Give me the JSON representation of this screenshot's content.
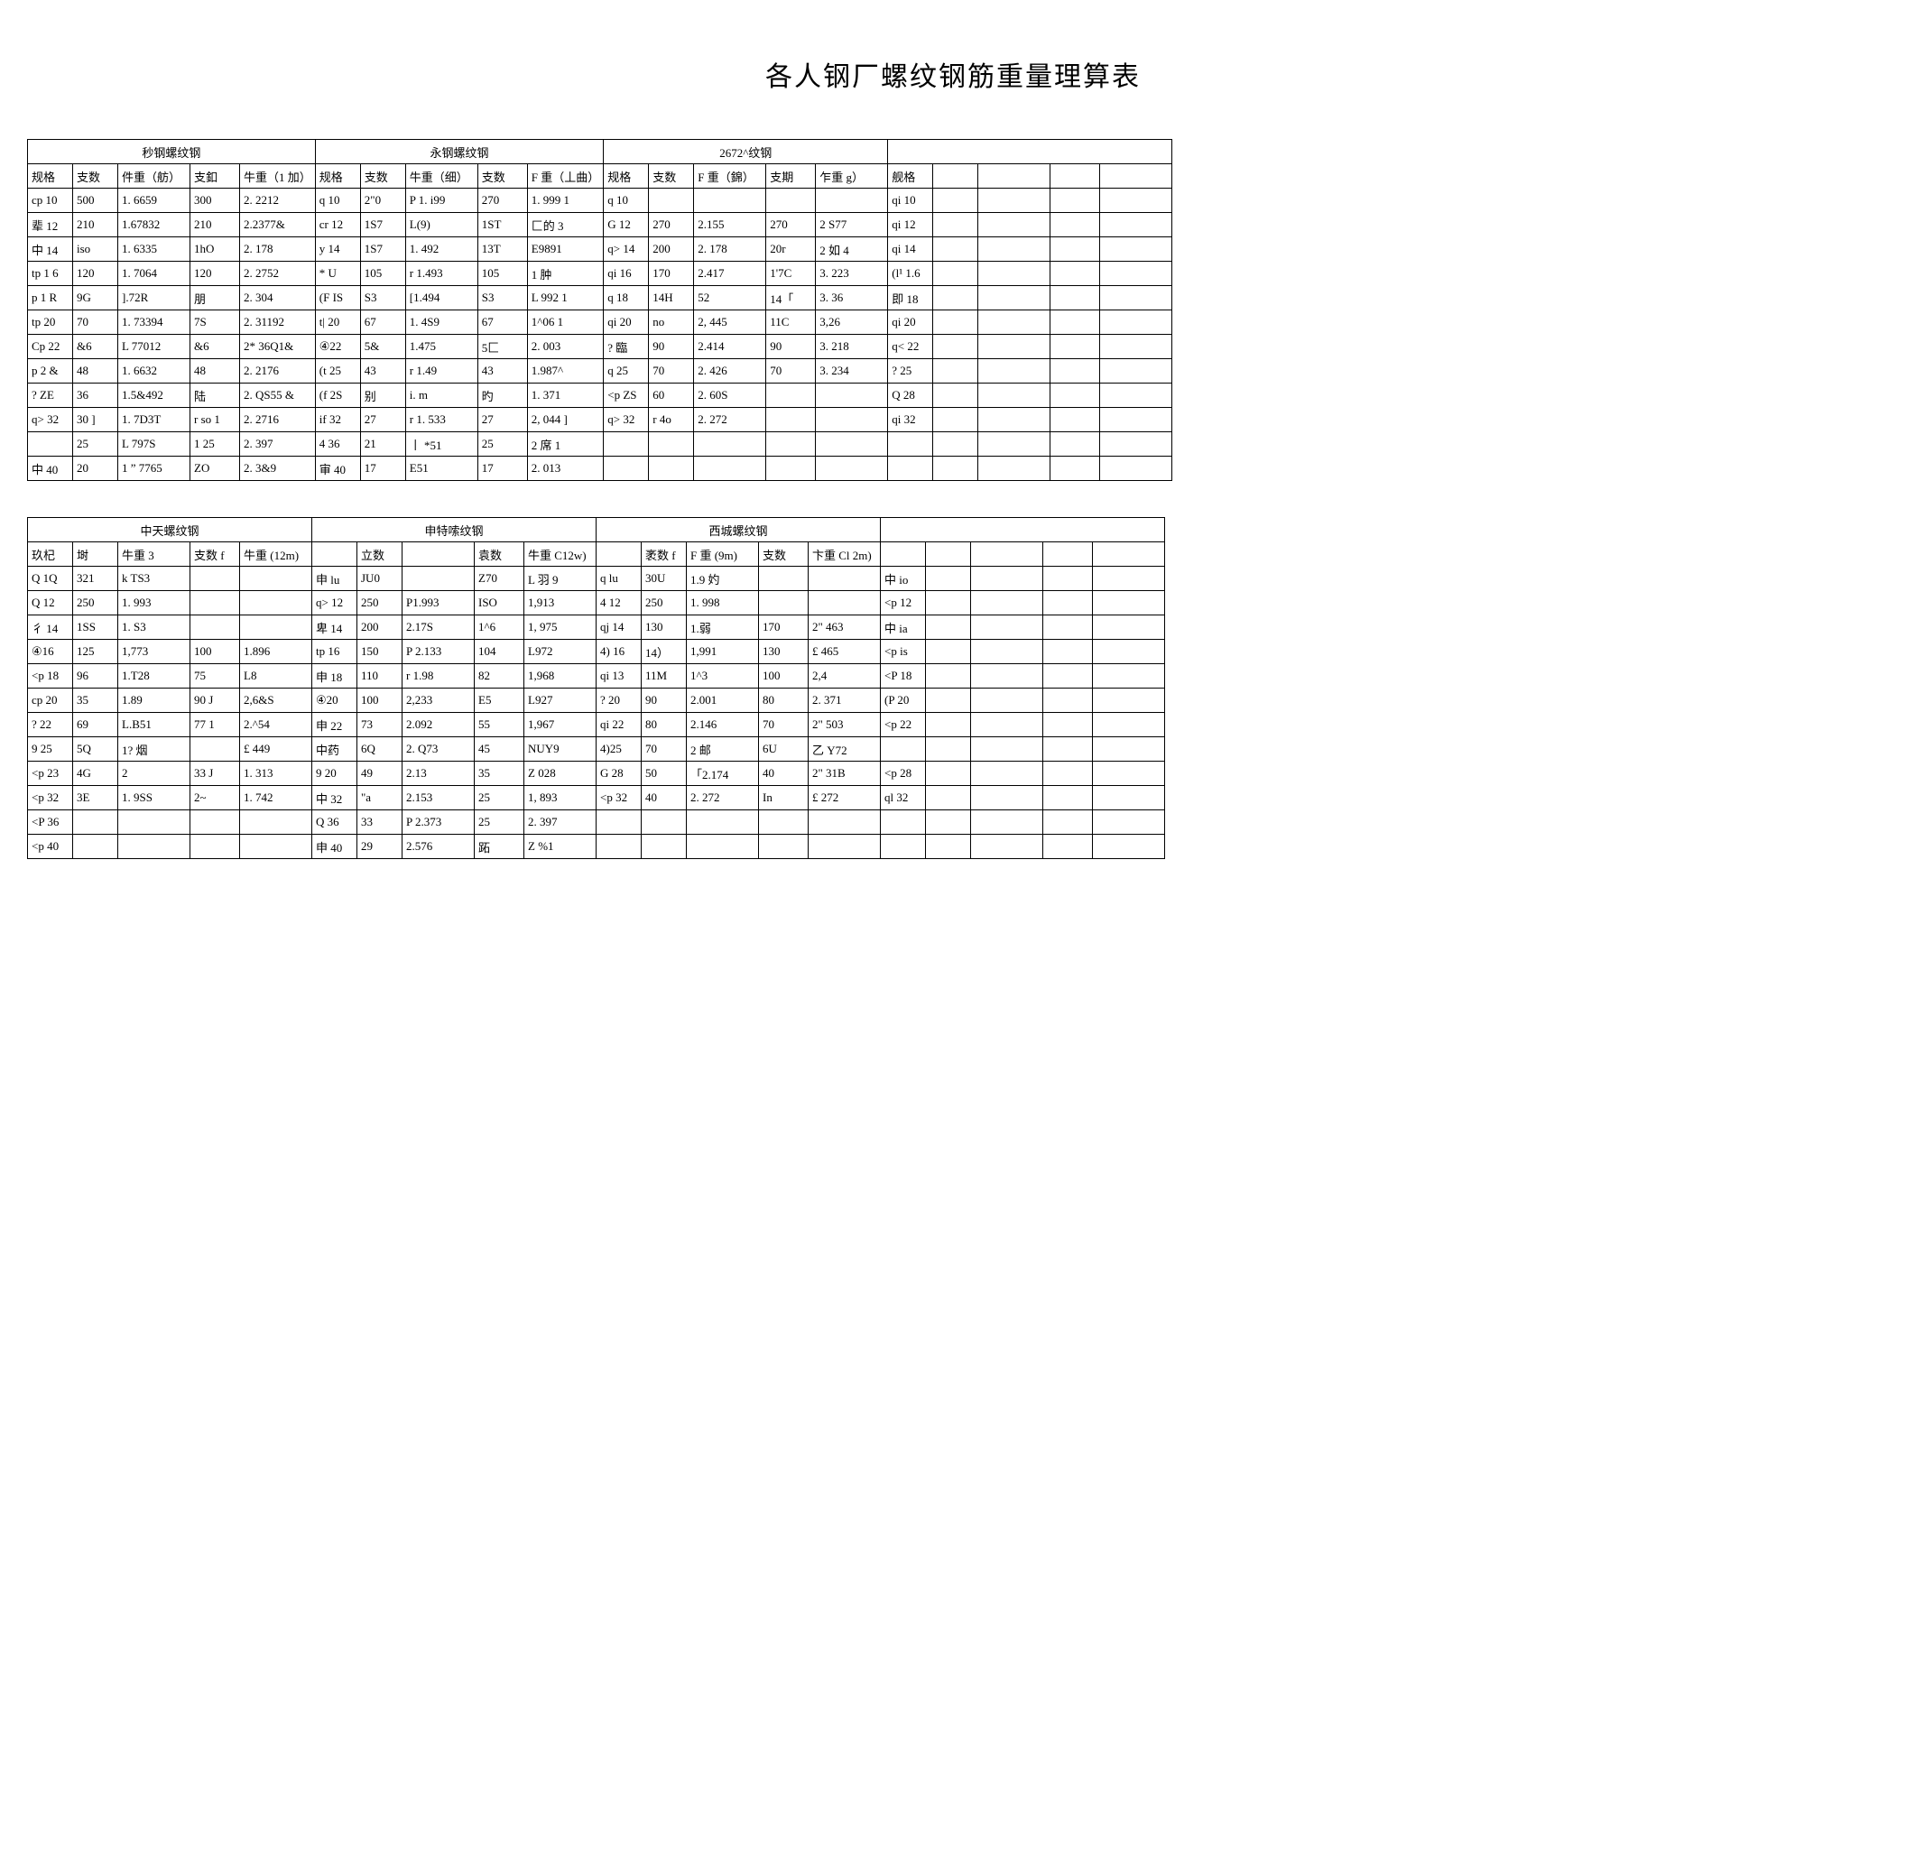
{
  "title": "各人钢厂螺纹钢筋重量理算表",
  "table1": {
    "groups": [
      "秒钢螺纹钢",
      "永钢螺纹钢",
      "2672^纹钢",
      ""
    ],
    "headers": [
      [
        "规格",
        "支数",
        "件重（舫）",
        "支釦",
        "牛重（1 加）"
      ],
      [
        "规格",
        "支数",
        "牛重（细）",
        "支数",
        "F 重（丄曲）"
      ],
      [
        "规格",
        "支数",
        "F 重（錦）",
        "支期",
        "乍重 g）"
      ],
      [
        "舰格",
        "",
        "",
        "",
        ""
      ]
    ],
    "rows": [
      [
        "cp 10",
        "500",
        "1. 6659",
        "300",
        "2. 2212",
        "q 10",
        "2\"0",
        "P 1. i99",
        "270",
        "1. 999 1",
        "q 10",
        "",
        "",
        "",
        "",
        "qi 10",
        "",
        "",
        "",
        ""
      ],
      [
        "辈 12",
        "210",
        "1.67832",
        "210",
        "2.2377&",
        "cr 12",
        "1S7",
        "L(9)",
        "1ST",
        "匚的 3",
        "G 12",
        "270",
        "2.155",
        "270",
        "2 S77",
        "qi 12",
        "",
        "",
        "",
        ""
      ],
      [
        "中 14",
        "iso",
        "1. 6335",
        "1hO",
        "2. 178",
        "y 14",
        "1S7",
        "1. 492",
        "13T",
        "E9891",
        "q> 14",
        "200",
        "2. 178",
        "20r",
        "2 如 4",
        "qi 14",
        "",
        "",
        "",
        ""
      ],
      [
        "tp 1 6",
        "120",
        "1. 7064",
        "120",
        "2. 2752",
        "* U",
        "105",
        "r 1.493",
        "105",
        "1 肿",
        "qi 16",
        "170",
        "2.417",
        "1'7C",
        "3. 223",
        "(l¹ 1.6",
        "",
        "",
        "",
        ""
      ],
      [
        "p 1 R",
        "9G",
        "].72R",
        "朋",
        "2. 304",
        "(F IS",
        "S3",
        "[1.494",
        "S3",
        "L 992 1",
        "q 18",
        "14H",
        "52",
        "14「",
        "3. 36",
        "即 18",
        "",
        "",
        "",
        ""
      ],
      [
        "tp 20",
        "70",
        "1. 73394",
        "7S",
        "2. 31192",
        "t| 20",
        "67",
        "1. 4S9",
        "67",
        "1^06 1",
        "qi 20",
        "no",
        "2, 445",
        "11C",
        "3,26",
        "qi 20",
        "",
        "",
        "",
        ""
      ],
      [
        "Cp 22",
        "&6",
        "L 77012",
        "&6",
        "2* 36Q1&",
        "④22",
        "5&",
        "1.475",
        "5匚",
        "2. 003",
        "? 臨",
        "90",
        "2.414",
        "90",
        "3. 218",
        "q< 22",
        "",
        "",
        "",
        ""
      ],
      [
        "p 2 &",
        "48",
        "1. 6632",
        "48",
        "2. 2176",
        "(t 25",
        "43",
        "r 1.49",
        "43",
        "1.987^",
        "q 25",
        "70",
        "2. 426",
        "70",
        "3. 234",
        "? 25",
        "",
        "",
        "",
        ""
      ],
      [
        "? ZE",
        "36",
        "1.5&492",
        "陆",
        "2. QS55 &",
        "(f 2S",
        "别",
        "i. m",
        "旳",
        "1. 371",
        "<p ZS",
        "60",
        "2. 60S",
        "",
        "",
        "Q 28",
        "",
        "",
        "",
        ""
      ],
      [
        "q> 32",
        "30 ]",
        "1. 7D3T",
        "r so 1",
        "2. 2716",
        "if 32",
        "27",
        "r 1. 533",
        "27",
        "2, 044 ]",
        "q> 32",
        "r 4o",
        "2. 272",
        "",
        "",
        "qi 32",
        "",
        "",
        "",
        ""
      ],
      [
        "",
        "25",
        "L 797S",
        "1 25",
        "2. 397",
        "4 36",
        "21",
        "丨 *51",
        "25",
        "2 席 1",
        "",
        "",
        "",
        "",
        "",
        "",
        "",
        "",
        "",
        ""
      ],
      [
        "中 40",
        "20",
        "1 ” 7765",
        "ZO",
        "2. 3&9",
        "审 40",
        "17",
        "E51",
        "17",
        "2. 013",
        "",
        "",
        "",
        "",
        "",
        "",
        "",
        "",
        "",
        ""
      ]
    ]
  },
  "table2": {
    "groups": [
      "中天螺纹钢",
      "申特嗦纹钢",
      "西城螺纹钢",
      ""
    ],
    "headers": [
      [
        "玖杞",
        "埘",
        "牛重 3",
        "支数 f",
        "牛重 (12m)"
      ],
      [
        "",
        "立数",
        "",
        "袁数",
        "牛重 C12w)"
      ],
      [
        "",
        "袤数 f",
        "F 重 (9m)",
        "支数",
        "卞重 Cl 2m)"
      ],
      [
        "",
        "",
        "",
        "",
        ""
      ]
    ],
    "rows": [
      [
        "Q 1Q",
        "321",
        "k TS3",
        "",
        "",
        "申 lu",
        "JU0",
        "",
        "Z70",
        "L 羽 9",
        "q lu",
        "30U",
        "1.9 妁",
        "",
        "",
        "中 io",
        "",
        "",
        "",
        ""
      ],
      [
        "Q 12",
        "250",
        "1. 993",
        "",
        "",
        "q> 12",
        "250",
        "P1.993",
        "ISO",
        "1,913",
        "4 12",
        "250",
        "1. 998",
        "",
        "",
        "<p 12",
        "",
        "",
        "",
        ""
      ],
      [
        "彳 14",
        "1SS",
        "1. S3",
        "",
        "",
        "卑 14",
        "200",
        "2.17S",
        "1^6",
        "1, 975",
        "qj 14",
        "130",
        "1.弱",
        "170",
        "2\" 463",
        "中 ia",
        "",
        "",
        "",
        ""
      ],
      [
        "④16",
        "125",
        "1,773",
        "100",
        "1.896",
        "tp 16",
        "150",
        "P 2.133",
        "104",
        "L972",
        "4) 16",
        "14）",
        "1,991",
        "130",
        "£ 465",
        "<p is",
        "",
        "",
        "",
        ""
      ],
      [
        "<p 18",
        "96",
        "1.T28",
        "75",
        "L8",
        "申 18",
        "110",
        "r 1.98",
        "82",
        "1,968",
        "qi 13",
        "11M",
        "1^3",
        "100",
        "2,4",
        "<P 18",
        "",
        "",
        "",
        ""
      ],
      [
        "cp 20",
        "35",
        "1.89",
        "90 J",
        "2,6&S",
        "④20",
        "100",
        "2,233",
        "E5",
        "L927",
        "? 20",
        "90",
        "2.001",
        "80",
        "2. 371",
        "(P 20",
        "",
        "",
        "",
        ""
      ],
      [
        "? 22",
        "69",
        "L.B51",
        "77 1",
        "2.^54",
        "申 22",
        "73",
        "2.092",
        "55",
        "1,967",
        "qi 22",
        "80",
        "2.146",
        "70",
        "2\" 503",
        "<p 22",
        "",
        "",
        "",
        ""
      ],
      [
        "9 25",
        "5Q",
        "1? 烟",
        "",
        "£ 449",
        "中药",
        "6Q",
        "2. Q73",
        "45",
        "NUY9",
        "4)25",
        "70",
        "2 邮",
        "6U",
        "乙 Y72",
        "",
        "",
        "",
        "",
        ""
      ],
      [
        "<p 23",
        "4G",
        "2",
        "33 J",
        "1. 313",
        "9 20",
        "49",
        "2.13",
        "35",
        "Z 028",
        "G 28",
        "50",
        "「2.174",
        "40",
        "2\" 31B",
        "<p 28",
        "",
        "",
        "",
        ""
      ],
      [
        "<p 32",
        "3E",
        "1. 9SS",
        "2~",
        "1. 742",
        "中 32",
        "\"a",
        "2.153",
        "25",
        "1, 893",
        "<p 32",
        "40",
        "2. 272",
        "In",
        "£ 272",
        "ql 32",
        "",
        "",
        "",
        ""
      ],
      [
        "<P 36",
        "",
        "",
        "",
        "",
        "Q 36",
        "33",
        "P 2.373",
        "25",
        "2. 397",
        "",
        "",
        "",
        "",
        "",
        "",
        "",
        "",
        "",
        ""
      ],
      [
        "<p 40",
        "",
        "",
        "",
        "",
        "申 40",
        "29",
        "2.576",
        "跖",
        "Z %1",
        "",
        "",
        "",
        "",
        "",
        "",
        "",
        "",
        "",
        ""
      ]
    ]
  }
}
